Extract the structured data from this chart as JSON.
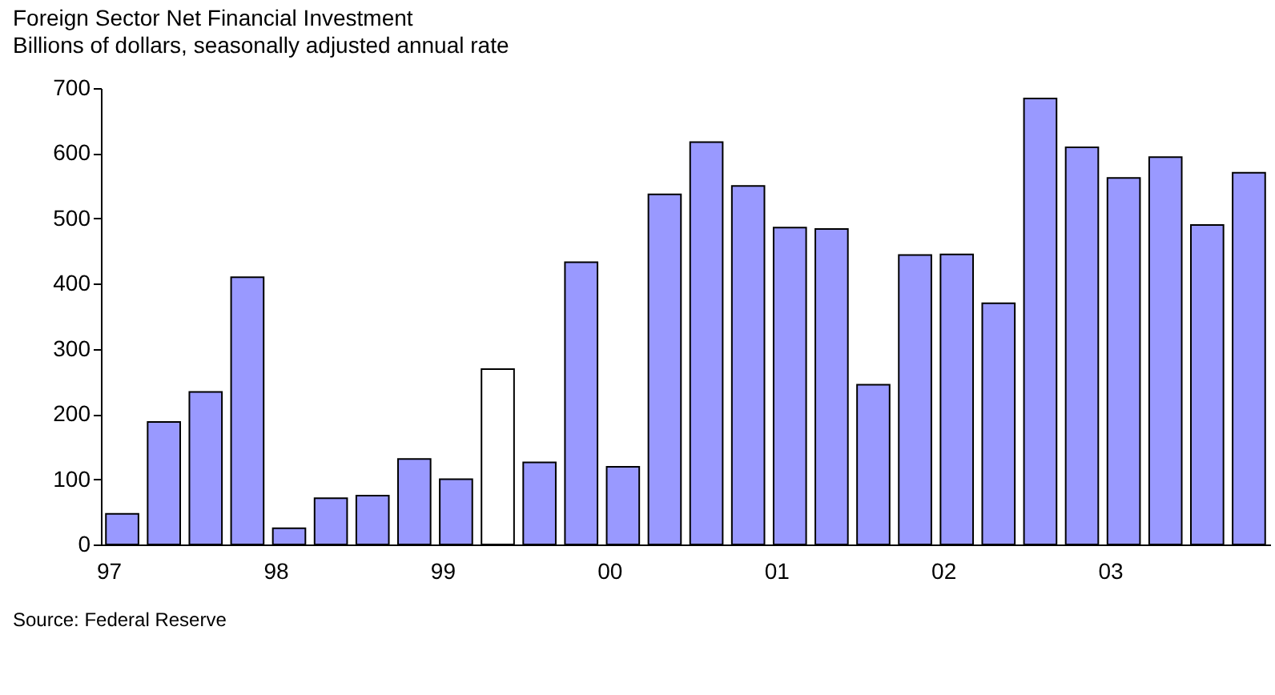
{
  "chart_data": {
    "type": "bar",
    "title": "Foreign Sector Net Financial Investment",
    "subtitle": "Billions of dollars, seasonally adjusted annual rate",
    "categories": [
      "97",
      null,
      null,
      null,
      "98",
      null,
      null,
      null,
      "99",
      null,
      null,
      null,
      "00",
      null,
      null,
      null,
      "01",
      null,
      null,
      null,
      "02",
      null,
      null,
      null,
      "03",
      null,
      null,
      null
    ],
    "values": [
      47,
      188,
      234,
      410,
      25,
      71,
      75,
      131,
      100,
      269,
      126,
      433,
      119,
      537,
      617,
      550,
      486,
      484,
      245,
      444,
      445,
      370,
      684,
      609,
      562,
      594,
      490,
      570
    ],
    "colors": [
      "#9999ff",
      "#9999ff",
      "#9999ff",
      "#9999ff",
      "#9999ff",
      "#9999ff",
      "#9999ff",
      "#9999ff",
      "#9999ff",
      "#ffffff",
      "#9999ff",
      "#9999ff",
      "#9999ff",
      "#9999ff",
      "#9999ff",
      "#9999ff",
      "#9999ff",
      "#9999ff",
      "#9999ff",
      "#9999ff",
      "#9999ff",
      "#9999ff",
      "#9999ff",
      "#9999ff",
      "#9999ff",
      "#9999ff",
      "#9999ff",
      "#9999ff"
    ],
    "ylim": [
      0,
      700
    ],
    "yticks": [
      0,
      100,
      200,
      300,
      400,
      500,
      600,
      700
    ],
    "grid": false,
    "annotations": [
      "Source:  Federal Reserve"
    ]
  }
}
